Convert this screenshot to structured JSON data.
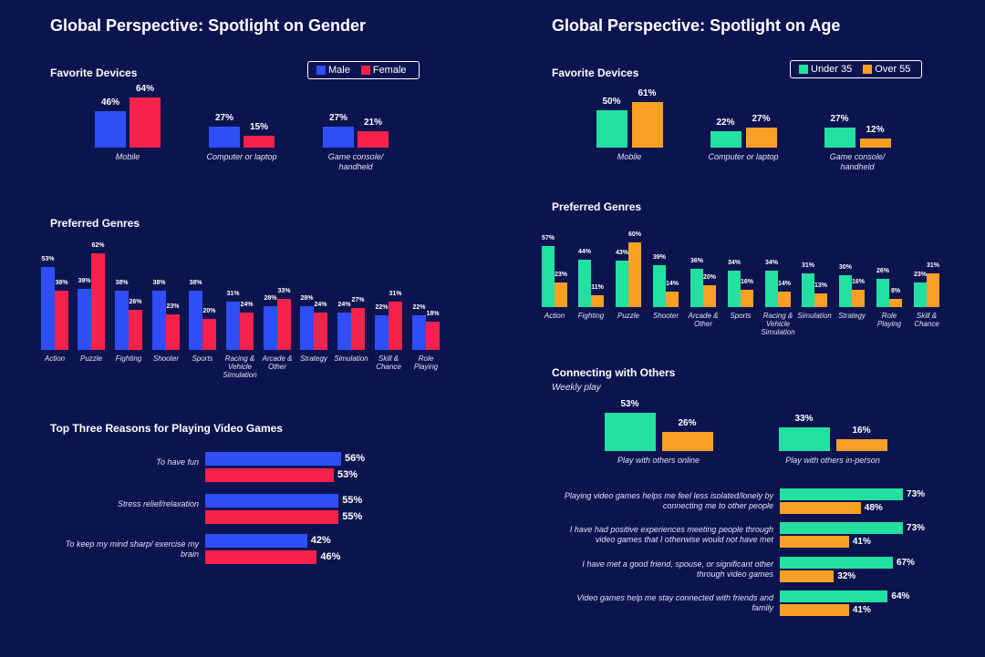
{
  "headings": [
    "Global Perspective: Spotlight on Gender",
    "Global Perspective: Spotlight on Age"
  ],
  "chart_data": [
    {
      "type": "bar",
      "title": "Favorite Devices",
      "categories": [
        "Mobile",
        "Computer or laptop",
        "Game console/ handheld"
      ],
      "series": [
        {
          "name": "Male",
          "color": "#2f4ef6",
          "values": [
            46,
            27,
            27
          ],
          "value_labels": [
            "46%",
            "27%",
            "27%"
          ]
        },
        {
          "name": "Female",
          "color": "#f5224b",
          "values": [
            64,
            15,
            21
          ],
          "value_labels": [
            "64%",
            "15%",
            "21%"
          ]
        }
      ]
    },
    {
      "type": "bar",
      "title": "Preferred Genres",
      "categories": [
        "Action",
        "Puzzle",
        "Fighting",
        "Shooter",
        "Sports",
        "Racing & Vehicle Simulation",
        "Arcade & Other",
        "Strategy",
        "Simulation",
        "Skill & Chance",
        "Role Playing"
      ],
      "series": [
        {
          "color": "#2f4ef6",
          "values": [
            53,
            39,
            38,
            38,
            38,
            31,
            28,
            28,
            24,
            22,
            22
          ],
          "value_labels": [
            "53%",
            "39%",
            "38%",
            "38%",
            "38%",
            "31%",
            "28%",
            "28%",
            "24%",
            "22%",
            "22%"
          ]
        },
        {
          "color": "#f5224b",
          "values": [
            38,
            62,
            26,
            23,
            20,
            24,
            33,
            24,
            27,
            31,
            18
          ],
          "value_labels": [
            "38%",
            "62%",
            "26%",
            "23%",
            "20%",
            "24%",
            "33%",
            "24%",
            "27%",
            "31%",
            "18%"
          ]
        }
      ]
    },
    {
      "type": "hbar",
      "title": "Top Three Reasons for Playing Video Games",
      "categories": [
        "To have fun",
        "Stress relief/relaxation",
        "To keep my mind sharp/ exercise my brain"
      ],
      "series": [
        {
          "color": "#2f4ef6",
          "values": [
            56,
            55,
            42
          ],
          "value_labels": [
            "56%",
            "55%",
            "42%"
          ]
        },
        {
          "color": "#f5224b",
          "values": [
            53,
            55,
            46
          ],
          "value_labels": [
            "53%",
            "55%",
            "46%"
          ]
        }
      ]
    },
    {
      "type": "bar",
      "title": "Favorite Devices",
      "categories": [
        "Mobile",
        "Computer or laptop",
        "Game console/ handheld"
      ],
      "series": [
        {
          "name": "Under 35",
          "color": "#23e0a1",
          "values": [
            50,
            22,
            27
          ],
          "value_labels": [
            "50%",
            "22%",
            "27%"
          ]
        },
        {
          "name": "Over 55",
          "color": "#f7a024",
          "values": [
            61,
            27,
            12
          ],
          "value_labels": [
            "61%",
            "27%",
            "12%"
          ]
        }
      ]
    },
    {
      "type": "bar",
      "title": "Preferred Genres",
      "categories": [
        "Action",
        "Fighting",
        "Puzzle",
        "Shooter",
        "Arcade & Other",
        "Sports",
        "Racing & Vehicle Simulation",
        "Simulation",
        "Strategy",
        "Role Playing",
        "Skill & Chance"
      ],
      "series": [
        {
          "color": "#23e0a1",
          "values": [
            57,
            44,
            43,
            39,
            36,
            34,
            34,
            31,
            30,
            26,
            23
          ],
          "value_labels": [
            "57%",
            "44%",
            "43%",
            "39%",
            "36%",
            "34%",
            "34%",
            "31%",
            "30%",
            "26%",
            "23%"
          ]
        },
        {
          "color": "#f7a024",
          "values": [
            23,
            11,
            60,
            14,
            20,
            16,
            14,
            13,
            16,
            8,
            31
          ],
          "value_labels": [
            "23%",
            "11%",
            "60%",
            "14%",
            "20%",
            "16%",
            "14%",
            "13%",
            "16%",
            "8%",
            "31%"
          ]
        }
      ]
    },
    {
      "type": "bar",
      "title": "Connecting with Others",
      "subtitle": "Weekly play",
      "categories": [
        "Play with others online",
        "Play with others in-person"
      ],
      "series": [
        {
          "color": "#23e0a1",
          "values": [
            53,
            33
          ],
          "value_labels": [
            "53%",
            "33%"
          ]
        },
        {
          "color": "#f7a024",
          "values": [
            26,
            16
          ],
          "value_labels": [
            "26%",
            "16%"
          ]
        }
      ]
    },
    {
      "type": "hbar",
      "categories": [
        "Playing video games helps me feel less isolated/lonely by connecting me to other people",
        "I have had positive experiences meeting people through video games that I otherwise would not have met",
        "I have met a good friend, spouse, or significant other through video games",
        "Video games help me stay connected with friends and family"
      ],
      "series": [
        {
          "color": "#23e0a1",
          "values": [
            73,
            73,
            67,
            64
          ],
          "value_labels": [
            "73%",
            "73%",
            "67%",
            "64%"
          ]
        },
        {
          "color": "#f7a024",
          "values": [
            48,
            41,
            32,
            41
          ],
          "value_labels": [
            "48%",
            "41%",
            "32%",
            "41%"
          ]
        }
      ]
    }
  ]
}
